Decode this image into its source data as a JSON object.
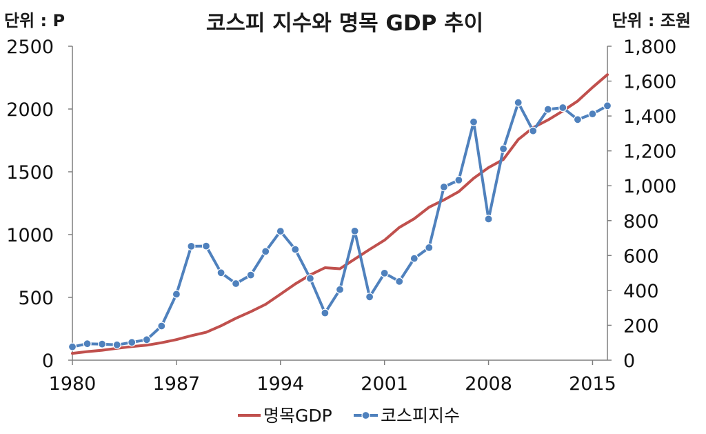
{
  "chart_data": {
    "type": "line",
    "title": "코스피 지수와 명목 GDP 추이",
    "left_unit_label": "단위 : P",
    "right_unit_label": "단위 : 조원",
    "x": [
      1980,
      1981,
      1982,
      1983,
      1984,
      1985,
      1986,
      1987,
      1988,
      1989,
      1990,
      1991,
      1992,
      1993,
      1994,
      1995,
      1996,
      1997,
      1998,
      1999,
      2000,
      2001,
      2002,
      2003,
      2004,
      2005,
      2006,
      2007,
      2008,
      2009,
      2010,
      2011,
      2012,
      2013,
      2014,
      2015,
      2016
    ],
    "xlim": [
      1980,
      2016
    ],
    "x_ticks": [
      "1980",
      "1987",
      "1994",
      "2001",
      "2008",
      "2015"
    ],
    "x_tick_values": [
      1980,
      1987,
      1994,
      2001,
      2008,
      2015
    ],
    "y_left_ticks": [
      "0",
      "500",
      "1000",
      "1500",
      "2000",
      "2500"
    ],
    "y_left_lim": [
      0,
      2500
    ],
    "y_right_ticks": [
      "0",
      "200",
      "400",
      "600",
      "800",
      "1,000",
      "1,200",
      "1,400",
      "1,600",
      "1,800"
    ],
    "y_right_lim": [
      0,
      1800
    ],
    "series": [
      {
        "name": "명목GDP",
        "axis": "right",
        "color": "#c0504d",
        "marker": "none",
        "values": [
          39,
          49,
          57,
          68,
          78,
          86,
          100,
          118,
          140,
          160,
          197,
          240,
          278,
          320,
          378,
          437,
          489,
          530,
          524,
          580,
          635,
          688,
          761,
          811,
          877,
          919,
          966,
          1043,
          1104,
          1151,
          1265,
          1333,
          1377,
          1429,
          1486,
          1564,
          1637
        ]
      },
      {
        "name": "코스피지수",
        "axis": "left",
        "color": "#4f81bd",
        "marker": "circle",
        "values": [
          106,
          131,
          128,
          122,
          142,
          163,
          272,
          525,
          907,
          909,
          696,
          610,
          678,
          866,
          1027,
          882,
          651,
          376,
          562,
          1028,
          504,
          693,
          627,
          810,
          896,
          1379,
          1434,
          1897,
          1124,
          1683,
          2051,
          1826,
          1997,
          2011,
          1916,
          1961,
          2026
        ]
      }
    ],
    "legend": {
      "placement": "bottom",
      "entries": [
        "명목GDP",
        "코스피지수"
      ]
    }
  }
}
